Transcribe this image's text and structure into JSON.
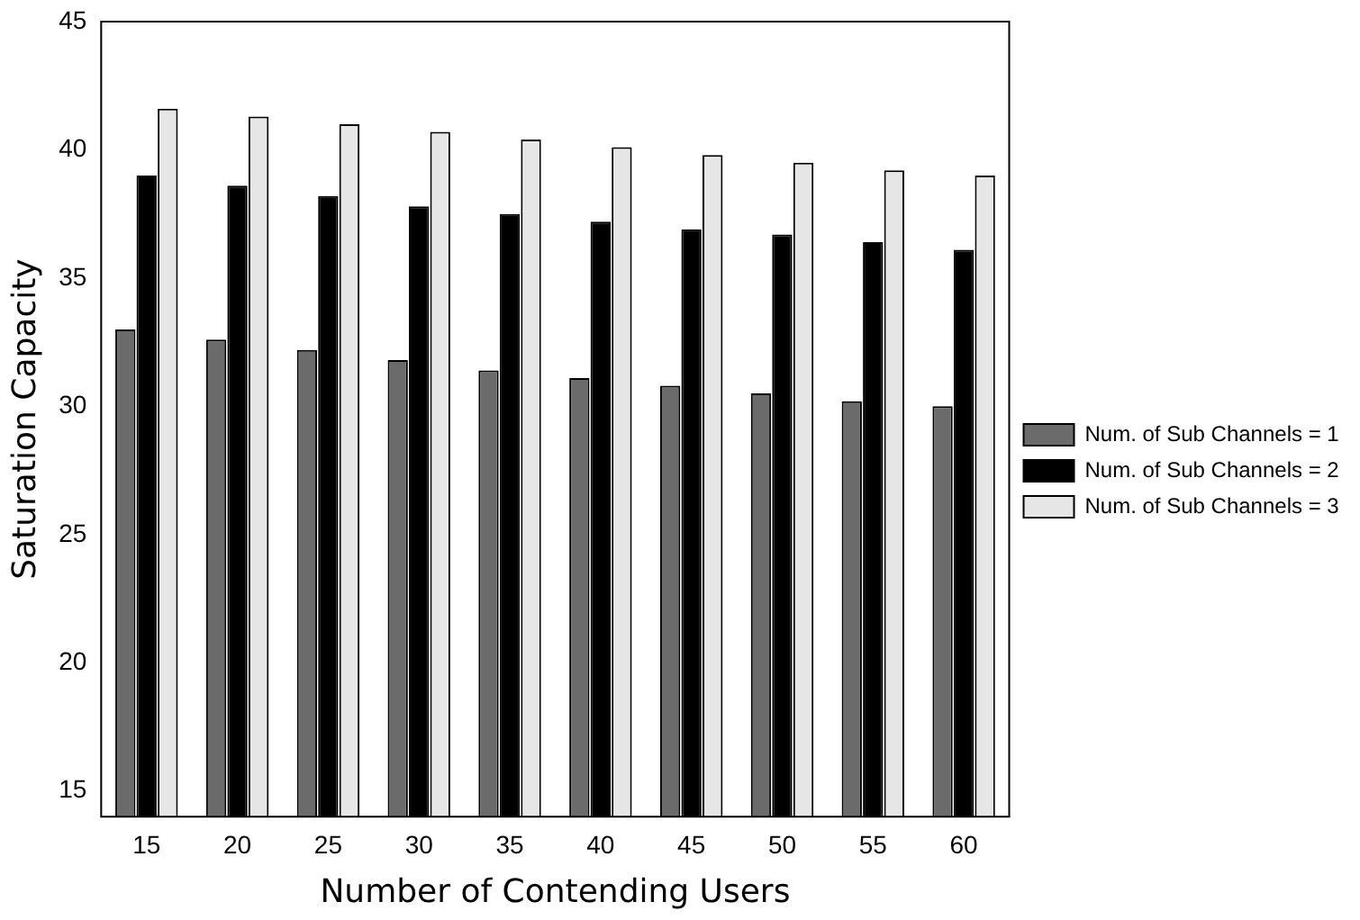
{
  "chart_data": {
    "type": "bar",
    "xlabel": "Number of Contending Users",
    "ylabel": "Saturation Capacity",
    "categories": [
      "15",
      "20",
      "25",
      "30",
      "35",
      "40",
      "45",
      "50",
      "55",
      "60"
    ],
    "series": [
      {
        "name": "Num. of Sub Channels = 1",
        "color": "#6b6b6b",
        "values": [
          33.0,
          32.6,
          32.2,
          31.8,
          31.4,
          31.1,
          30.8,
          30.5,
          30.2,
          30.0
        ]
      },
      {
        "name": "Num. of Sub Channels = 2",
        "color": "#000000",
        "values": [
          39.0,
          38.6,
          38.2,
          37.8,
          37.5,
          37.2,
          36.9,
          36.7,
          36.4,
          36.1
        ]
      },
      {
        "name": "Num. of Sub Channels = 3",
        "color": "#e6e6e6",
        "values": [
          41.6,
          41.3,
          41.0,
          40.7,
          40.4,
          40.1,
          39.8,
          39.5,
          39.2,
          39.0
        ]
      }
    ],
    "ylim": [
      14,
      45
    ],
    "yticks": [
      15,
      20,
      25,
      30,
      35,
      40,
      45
    ],
    "legend": "right"
  }
}
